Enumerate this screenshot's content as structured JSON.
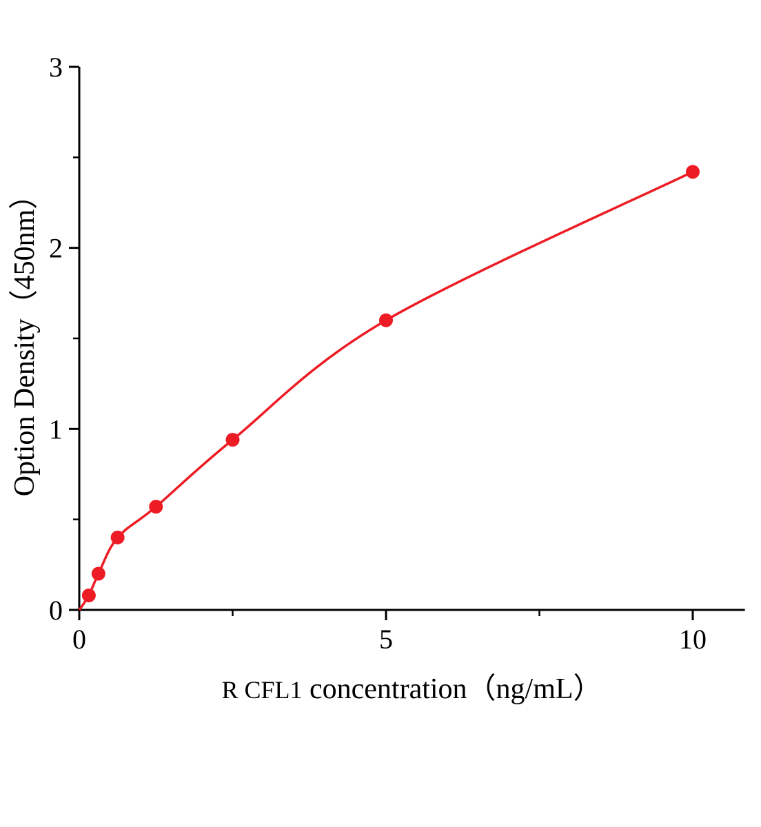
{
  "chart_data": {
    "type": "scatter",
    "title": "",
    "xlabel_prefix": "R CFL1",
    "xlabel_rest": " concentration（ng/mL）",
    "ylabel": "Option Density（450nm）",
    "x": [
      0.156,
      0.3125,
      0.625,
      1.25,
      2.5,
      5,
      10
    ],
    "y": [
      0.08,
      0.2,
      0.4,
      0.57,
      0.94,
      1.6,
      2.42
    ],
    "curve_start": [
      0,
      0
    ],
    "xlim": [
      0,
      10.85
    ],
    "ylim": [
      0,
      3
    ],
    "x_major_ticks": [
      0,
      5,
      10
    ],
    "x_major_tick_labels": [
      "0",
      "5",
      "10"
    ],
    "x_minor_ticks": [
      2.5,
      7.5
    ],
    "y_major_ticks": [
      0,
      1,
      2,
      3
    ],
    "y_major_tick_labels": [
      "0",
      "1",
      "2",
      "3"
    ],
    "y_minor_ticks": [
      0.5,
      1.5,
      2.5
    ],
    "line_color": "#ed1c24",
    "point_color": "#ed1c24",
    "axis_color": "#000000",
    "legend": "none",
    "grid": "off"
  }
}
